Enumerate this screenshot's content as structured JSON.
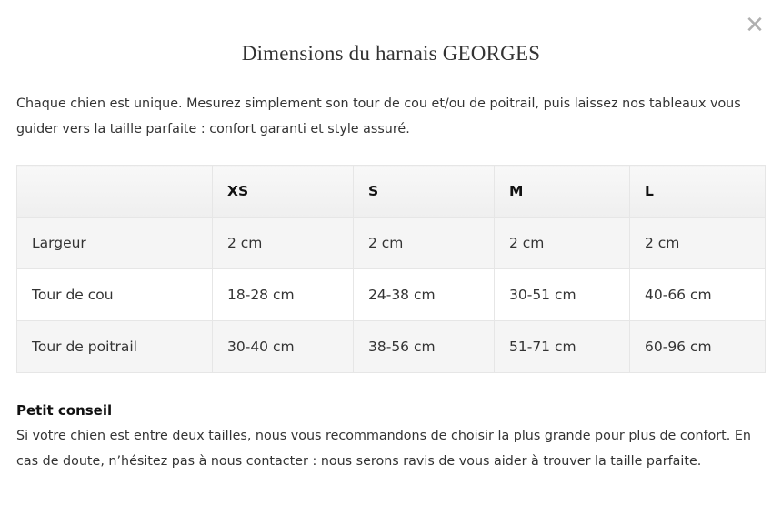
{
  "modal": {
    "close_icon": "close-x-icon",
    "title": "Dimensions du harnais GEORGES",
    "intro": "Chaque chien est unique. Mesurez simplement son tour de cou et/ou de poitrail, puis laissez nos tableaux vous guider vers la taille parfaite : confort garanti et style assuré.",
    "table": {
      "headers": [
        "",
        "XS",
        "S",
        "M",
        "L"
      ],
      "rows": [
        [
          "Largeur",
          "2 cm",
          "2 cm",
          "2 cm",
          "2 cm"
        ],
        [
          "Tour de cou",
          "18-28 cm",
          "24-38 cm",
          "30-51 cm",
          "40-66 cm"
        ],
        [
          "Tour de poitrail",
          "30-40 cm",
          "38-56 cm",
          "51-71 cm",
          "60-96 cm"
        ]
      ]
    },
    "tip": {
      "title": "Petit conseil",
      "text": "Si votre chien est entre deux tailles, nous vous recommandons de choisir la plus grande pour plus de confort. En cas de doute, n’hésitez pas à nous contacter : nous serons ravis de vous aider à trouver la taille parfaite."
    }
  }
}
